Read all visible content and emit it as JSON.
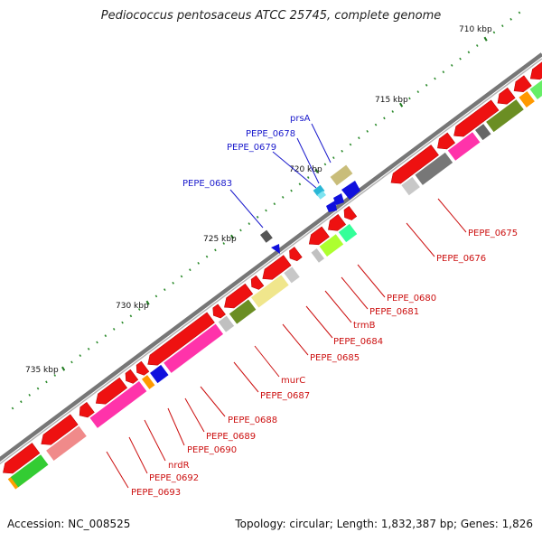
{
  "title": "Pediococcus pentosaceus ATCC 25745, complete genome",
  "footer": {
    "accession": "Accession: NC_008525",
    "topology": "Topology: circular; Length: 1,832,387 bp; Genes: 1,826"
  },
  "ticks": [
    "710 kbp",
    "715 kbp",
    "720 kbp",
    "725 kbp",
    "730 kbp",
    "735 kbp"
  ],
  "top_labels": [
    "prsA",
    "PEPE_0678",
    "PEPE_0679",
    "PEPE_0683"
  ],
  "bottom_labels": [
    "PEPE_0675",
    "PEPE_0676",
    "PEPE_0680",
    "PEPE_0681",
    "trmB",
    "PEPE_0684",
    "PEPE_0685",
    "murC",
    "PEPE_0687",
    "PEPE_0688",
    "PEPE_0689",
    "PEPE_0690",
    "nrdR",
    "PEPE_0692",
    "PEPE_0693"
  ],
  "colors": {
    "backbone": "#888888",
    "cds": "#ee1111",
    "label_top": "#1a1acc",
    "label_bottom": "#cc1010",
    "tick_minor": "#1f7a1f"
  }
}
